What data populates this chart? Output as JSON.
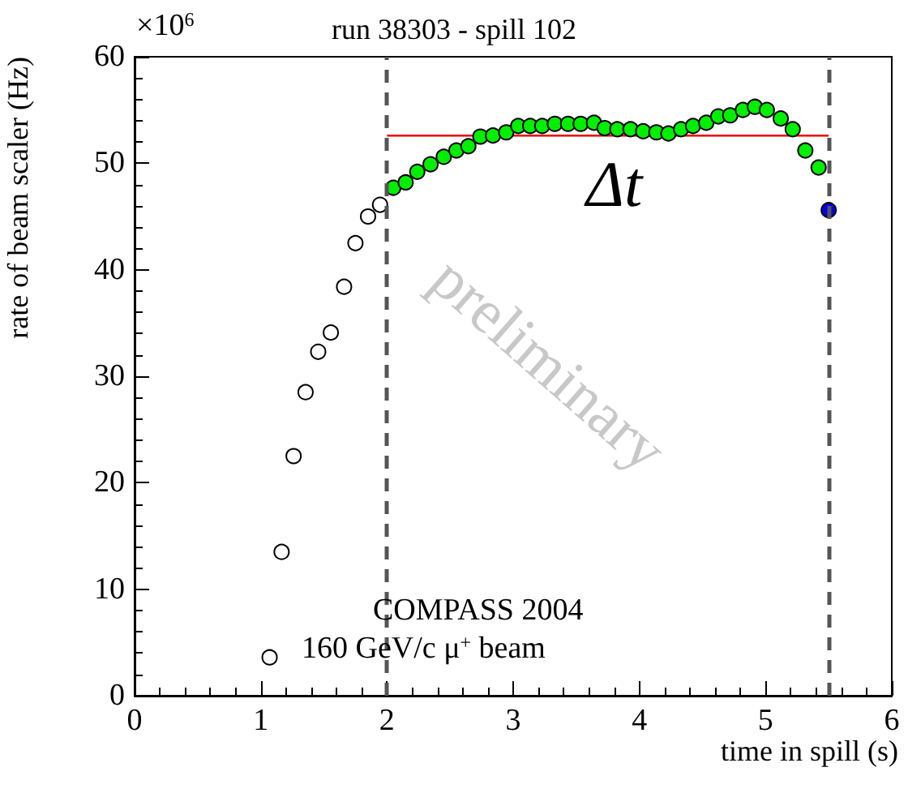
{
  "chart_data": {
    "type": "scatter",
    "title": "run 38303 - spill 102",
    "xlabel": "time in spill (s)",
    "ylabel": "rate of beam scaler (Hz)",
    "annotations": [
      "×10$^{6}$",
      "COMPASS 2004",
      "160 GeV/c μ$^{+}$ beam",
      "preliminary",
      {
        "text": "Δt",
        "x": 3.8,
        "y": 52.6
      }
    ],
    "xlim": [
      0,
      6
    ],
    "ylim": [
      0,
      60
    ],
    "xticks": [
      0,
      1,
      2,
      3,
      4,
      5,
      6
    ],
    "yticks": [
      0,
      10,
      20,
      30,
      40,
      50,
      60
    ],
    "grid": false,
    "marker": "circle",
    "series": [
      {
        "color": "#ffffff",
        "x": [
          1.07,
          1.165,
          1.26,
          1.355,
          1.455,
          1.555,
          1.66,
          1.75,
          1.85,
          1.945
        ],
        "values": [
          3.6,
          13.5,
          22.5,
          28.5,
          32.3,
          34.1,
          38.4,
          42.5,
          45.0,
          46.1
        ]
      },
      {
        "color": "#00ee00",
        "x": [
          2.05,
          2.148,
          2.24,
          2.345,
          2.45,
          2.55,
          2.645,
          2.74,
          2.84,
          2.945,
          3.04,
          3.135,
          3.23,
          3.33,
          3.435,
          3.535,
          3.64,
          3.725,
          3.825,
          3.93,
          4.03,
          4.135,
          4.23,
          4.33,
          4.425,
          4.53,
          4.625,
          4.72,
          4.82,
          4.915,
          5.01,
          5.12,
          5.215,
          5.315,
          5.42
        ],
        "values": [
          47.7,
          48.2,
          49.2,
          49.9,
          50.6,
          51.2,
          51.6,
          52.5,
          52.6,
          52.9,
          53.5,
          53.5,
          53.5,
          53.7,
          53.7,
          53.7,
          53.8,
          53.3,
          53.2,
          53.2,
          53.0,
          52.9,
          52.8,
          53.2,
          53.5,
          53.8,
          54.4,
          54.5,
          55.0,
          55.3,
          55.0,
          54.2,
          53.2,
          51.2,
          49.6
        ]
      },
      {
        "color": "#0000ee",
        "x": [
          5.5
        ],
        "values": [
          45.6
        ]
      },
      {
        "type": "line",
        "color": "#ee0000",
        "marker": "none",
        "x": [
          2,
          5.5
        ],
        "values": [
          52.6,
          52.6
        ]
      }
    ],
    "ref_lines": [
      {
        "axis": "x",
        "value": 2,
        "color": "#555555",
        "line_style": "dashed"
      },
      {
        "axis": "x",
        "value": 5.5,
        "color": "#555555",
        "line_style": "dashed"
      }
    ]
  }
}
